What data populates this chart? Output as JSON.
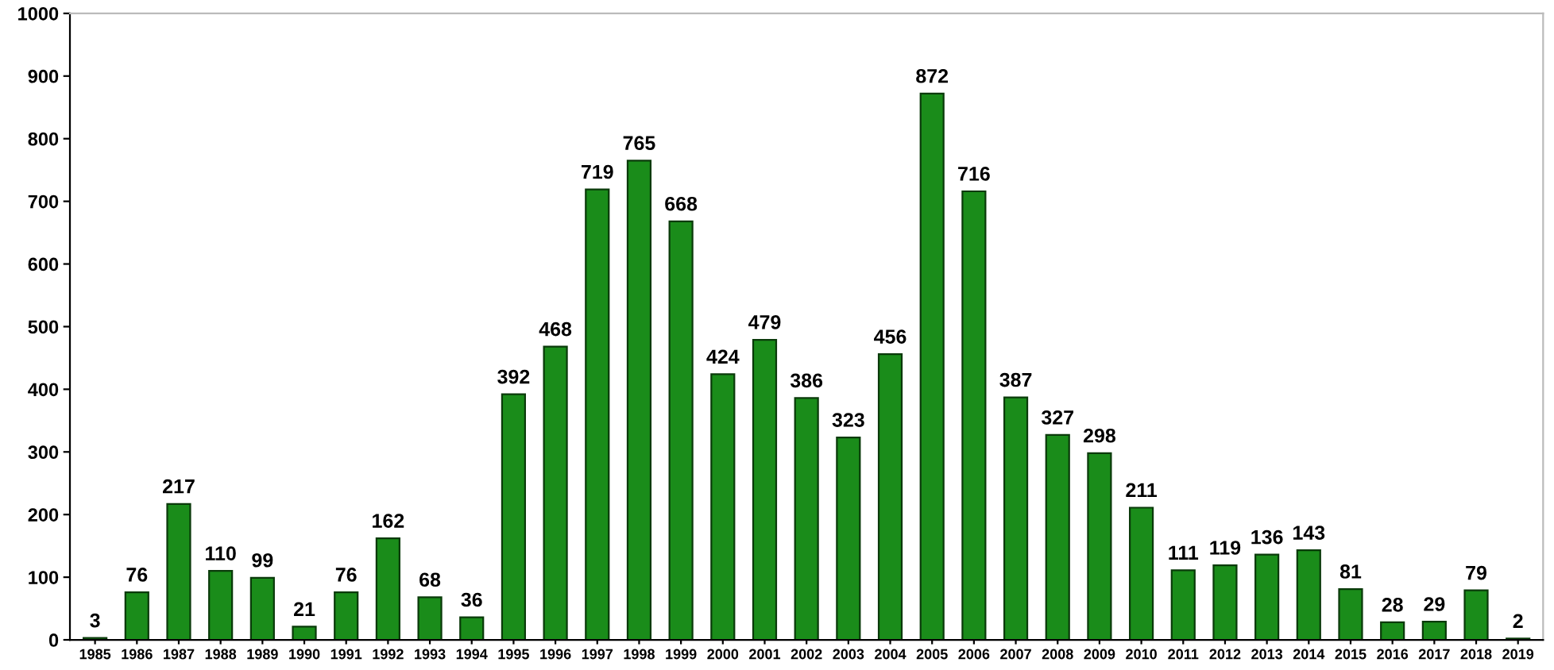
{
  "chart_data": {
    "type": "bar",
    "categories": [
      "1985",
      "1986",
      "1987",
      "1988",
      "1989",
      "1990",
      "1991",
      "1992",
      "1993",
      "1994",
      "1995",
      "1996",
      "1997",
      "1998",
      "1999",
      "2000",
      "2001",
      "2002",
      "2003",
      "2004",
      "2005",
      "2006",
      "2007",
      "2008",
      "2009",
      "2010",
      "2011",
      "2012",
      "2013",
      "2014",
      "2015",
      "2016",
      "2017",
      "2018",
      "2019"
    ],
    "values": [
      3,
      76,
      217,
      110,
      99,
      21,
      76,
      162,
      68,
      36,
      392,
      468,
      719,
      765,
      668,
      424,
      479,
      386,
      323,
      456,
      872,
      716,
      387,
      327,
      298,
      211,
      111,
      119,
      136,
      143,
      81,
      28,
      29,
      79,
      2
    ],
    "color": "#1a8c1a",
    "ylim": [
      0,
      1000
    ],
    "yticks": [
      0,
      100,
      200,
      300,
      400,
      500,
      600,
      700,
      800,
      900,
      1000
    ],
    "data_labels": true,
    "grid": false
  }
}
